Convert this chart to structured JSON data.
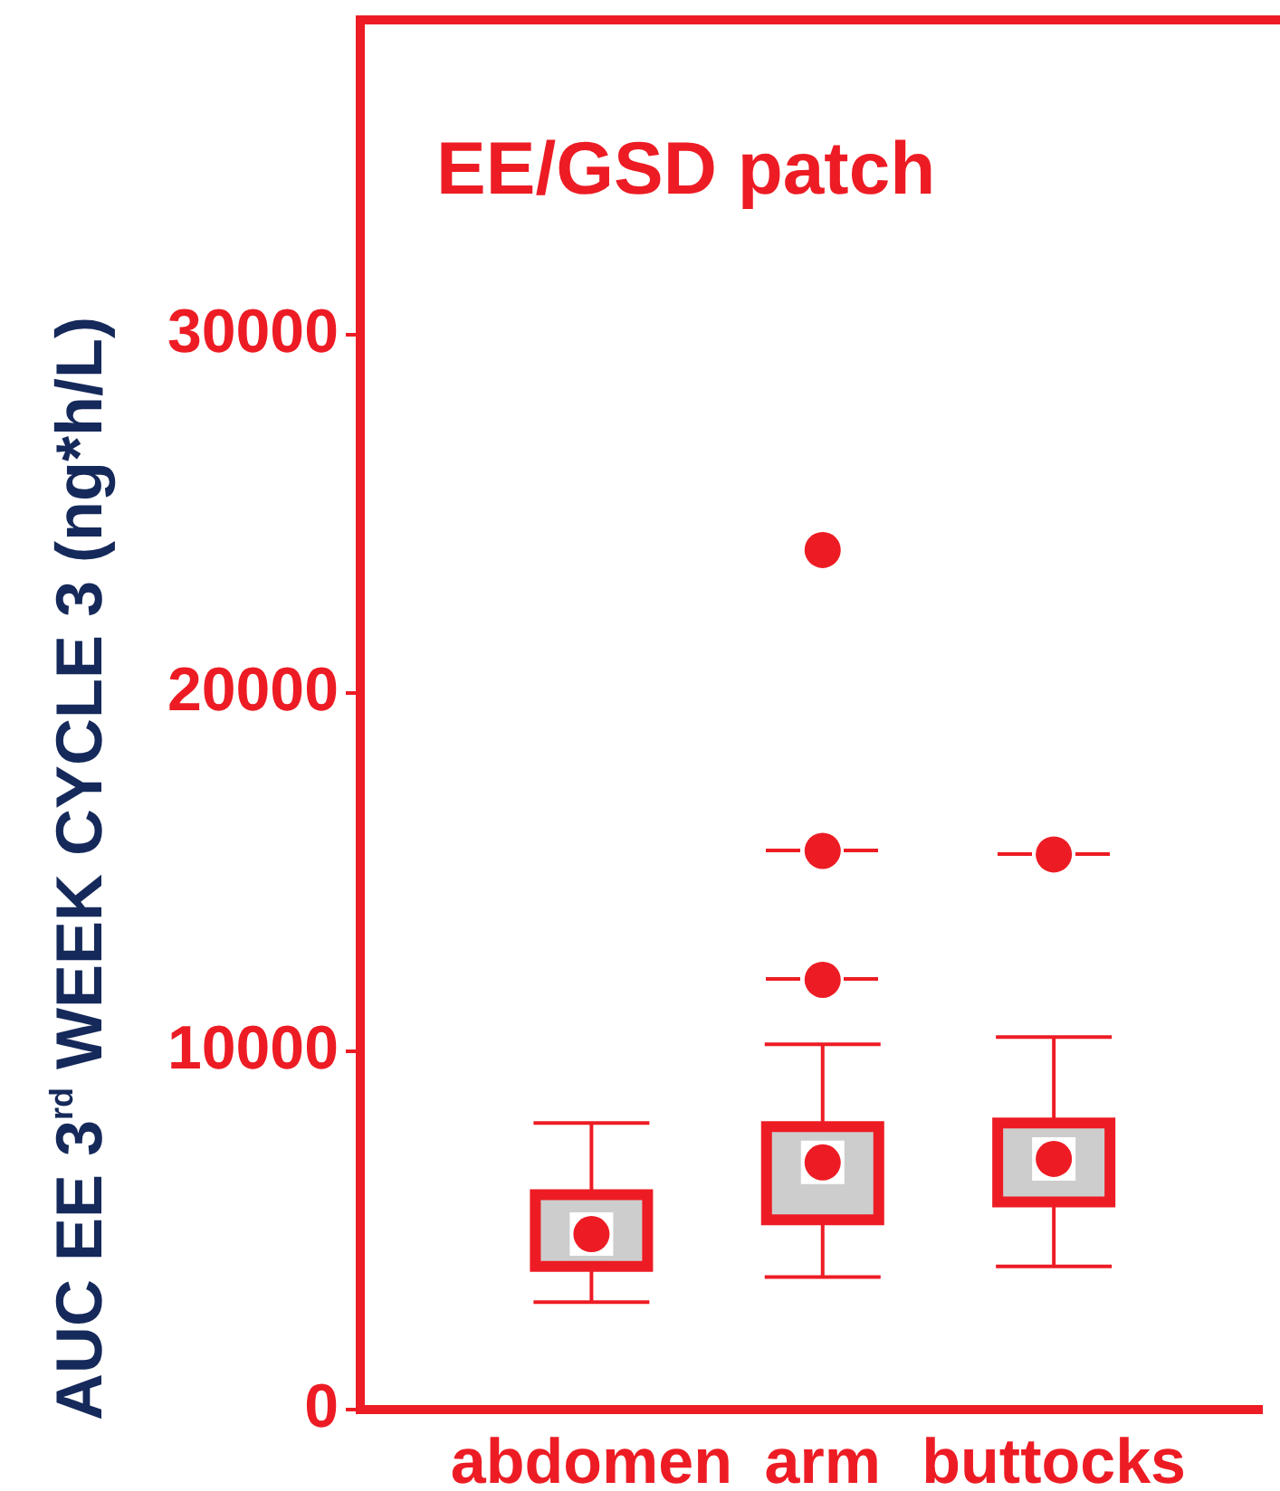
{
  "chart_data": {
    "type": "box",
    "title": "EE/GSD patch",
    "ylabel": "AUC EE 3$^{rd}$ WEEK CYCLE 3 (ng*h/L)",
    "categories": [
      "abdomen",
      "arm",
      "buttocks"
    ],
    "series": [
      {
        "type": "box",
        "color": "#cdcdcd",
        "boxes": [
          {
            "low": 3000,
            "q1": 4000,
            "median": 4900,
            "q3": 6000,
            "high": 8000
          },
          {
            "low": 3700,
            "q1": 5300,
            "median": 6900,
            "q3": 7900,
            "high": 10200,
            "outliers": [
              12000,
              15600
            ]
          },
          {
            "low": 4000,
            "q1": 5800,
            "median": 7000,
            "q3": 8000,
            "high": 10400,
            "outliers": [
              15500
            ]
          }
        ]
      },
      {
        "type": "scatter",
        "x": [
          "arm"
        ],
        "values": [
          24000
        ],
        "color": "#ed1c24"
      }
    ],
    "ylim": [
      0,
      38800
    ],
    "yticks": [
      0,
      10000,
      20000,
      30000
    ],
    "grid": false,
    "legend": false,
    "marker": "circle"
  }
}
